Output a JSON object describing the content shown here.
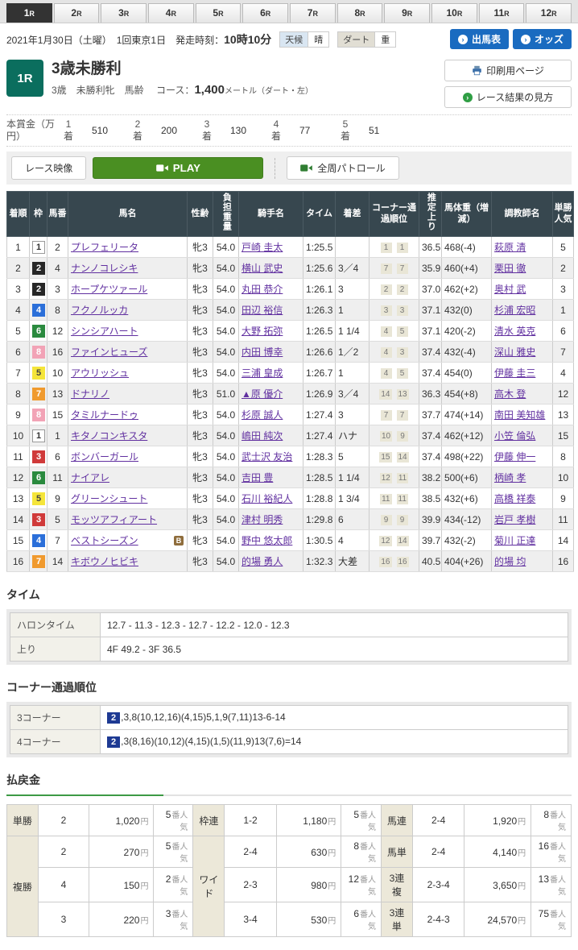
{
  "tabs": {
    "items": [
      "1R",
      "2R",
      "3R",
      "4R",
      "5R",
      "6R",
      "7R",
      "8R",
      "9R",
      "10R",
      "11R",
      "12R"
    ],
    "active_index": 0
  },
  "info_bar": {
    "date": "2021年1月30日（土曜）",
    "meeting": "1回東京1日",
    "start_label": "発走時刻：",
    "start_time": "10時10分",
    "weather_label": "天候",
    "weather_value": "晴",
    "track_label": "ダート",
    "track_value": "重",
    "entry_button": "出馬表",
    "odds_button": "オッズ"
  },
  "race_header": {
    "race_no": "1R",
    "title": "3歳未勝利",
    "conditions": "3歳　未勝利牝　馬齢",
    "course_label": "コース：",
    "course_value": "1,400",
    "course_suffix": "メートル（ダート・左）",
    "print_button": "印刷用ページ",
    "guide_button": "レース結果の見方"
  },
  "prize": {
    "label": "本賞金（万円）",
    "items": [
      {
        "place": "1着",
        "amount": "510"
      },
      {
        "place": "2着",
        "amount": "200"
      },
      {
        "place": "3着",
        "amount": "130"
      },
      {
        "place": "4着",
        "amount": "77"
      },
      {
        "place": "5着",
        "amount": "51"
      }
    ]
  },
  "video_bar": {
    "race_video": "レース映像",
    "play": "PLAY",
    "patrol": "全周パトロール"
  },
  "results": {
    "columns": [
      "着順",
      "枠",
      "馬番",
      "馬名",
      "性齢",
      "負担重量",
      "騎手名",
      "タイム",
      "着差",
      "コーナー通過順位",
      "推定上り",
      "馬体重（増減）",
      "調教師名",
      "単勝人気"
    ],
    "rows": [
      {
        "pos": "1",
        "waku": "1",
        "num": "2",
        "horse": "プレフェリータ",
        "blinker": false,
        "sexage": "牝3",
        "weight": "54.0",
        "jockey": "戸崎 圭太",
        "time": "1:25.5",
        "margin": "",
        "corners": [
          "1",
          "1"
        ],
        "agari": "36.5",
        "body": "468(-4)",
        "trainer": "萩原 清",
        "fav": "5"
      },
      {
        "pos": "2",
        "waku": "2",
        "num": "4",
        "horse": "ナンノコレシキ",
        "blinker": false,
        "sexage": "牝3",
        "weight": "54.0",
        "jockey": "横山 武史",
        "time": "1:25.6",
        "margin": "3／4",
        "corners": [
          "7",
          "7"
        ],
        "agari": "35.9",
        "body": "460(+4)",
        "trainer": "栗田 徹",
        "fav": "2"
      },
      {
        "pos": "3",
        "waku": "2",
        "num": "3",
        "horse": "ホープケツァール",
        "blinker": false,
        "sexage": "牝3",
        "weight": "54.0",
        "jockey": "丸田 恭介",
        "time": "1:26.1",
        "margin": "3",
        "corners": [
          "2",
          "2"
        ],
        "agari": "37.0",
        "body": "462(+2)",
        "trainer": "奥村 武",
        "fav": "3"
      },
      {
        "pos": "4",
        "waku": "4",
        "num": "8",
        "horse": "フクノルッカ",
        "blinker": false,
        "sexage": "牝3",
        "weight": "54.0",
        "jockey": "田辺 裕信",
        "time": "1:26.3",
        "margin": "1",
        "corners": [
          "3",
          "3"
        ],
        "agari": "37.1",
        "body": "432(0)",
        "trainer": "杉浦 宏昭",
        "fav": "1"
      },
      {
        "pos": "5",
        "waku": "6",
        "num": "12",
        "horse": "シンシアハート",
        "blinker": false,
        "sexage": "牝3",
        "weight": "54.0",
        "jockey": "大野 拓弥",
        "time": "1:26.5",
        "margin": "1 1/4",
        "corners": [
          "4",
          "5"
        ],
        "agari": "37.1",
        "body": "420(-2)",
        "trainer": "清水 英克",
        "fav": "6"
      },
      {
        "pos": "6",
        "waku": "8",
        "num": "16",
        "horse": "ファインヒューズ",
        "blinker": false,
        "sexage": "牝3",
        "weight": "54.0",
        "jockey": "内田 博幸",
        "time": "1:26.6",
        "margin": "1／2",
        "corners": [
          "4",
          "3"
        ],
        "agari": "37.4",
        "body": "432(-4)",
        "trainer": "深山 雅史",
        "fav": "7"
      },
      {
        "pos": "7",
        "waku": "5",
        "num": "10",
        "horse": "アウリッシュ",
        "blinker": false,
        "sexage": "牝3",
        "weight": "54.0",
        "jockey": "三浦 皇成",
        "time": "1:26.7",
        "margin": "1",
        "corners": [
          "4",
          "5"
        ],
        "agari": "37.4",
        "body": "454(0)",
        "trainer": "伊藤 圭三",
        "fav": "4"
      },
      {
        "pos": "8",
        "waku": "7",
        "num": "13",
        "horse": "ドナリノ",
        "blinker": false,
        "sexage": "牝3",
        "weight": "51.0",
        "jockey": "▲原 優介",
        "time": "1:26.9",
        "margin": "3／4",
        "corners": [
          "14",
          "13"
        ],
        "agari": "36.3",
        "body": "454(+8)",
        "trainer": "高木 登",
        "fav": "12"
      },
      {
        "pos": "9",
        "waku": "8",
        "num": "15",
        "horse": "タミルナードゥ",
        "blinker": false,
        "sexage": "牝3",
        "weight": "54.0",
        "jockey": "杉原 誠人",
        "time": "1:27.4",
        "margin": "3",
        "corners": [
          "7",
          "7"
        ],
        "agari": "37.7",
        "body": "474(+14)",
        "trainer": "南田 美知雄",
        "fav": "13"
      },
      {
        "pos": "10",
        "waku": "1",
        "num": "1",
        "horse": "キタノコンキスタ",
        "blinker": false,
        "sexage": "牝3",
        "weight": "54.0",
        "jockey": "嶋田 純次",
        "time": "1:27.4",
        "margin": "ハナ",
        "corners": [
          "10",
          "9"
        ],
        "agari": "37.4",
        "body": "462(+12)",
        "trainer": "小笠 倫弘",
        "fav": "15"
      },
      {
        "pos": "11",
        "waku": "3",
        "num": "6",
        "horse": "ボンバーガール",
        "blinker": false,
        "sexage": "牝3",
        "weight": "54.0",
        "jockey": "武士沢 友治",
        "time": "1:28.3",
        "margin": "5",
        "corners": [
          "15",
          "14"
        ],
        "agari": "37.4",
        "body": "498(+22)",
        "trainer": "伊藤 伸一",
        "fav": "8"
      },
      {
        "pos": "12",
        "waku": "6",
        "num": "11",
        "horse": "ナイアレ",
        "blinker": false,
        "sexage": "牝3",
        "weight": "54.0",
        "jockey": "吉田 豊",
        "time": "1:28.5",
        "margin": "1 1/4",
        "corners": [
          "12",
          "11"
        ],
        "agari": "38.2",
        "body": "500(+6)",
        "trainer": "柄崎 孝",
        "fav": "10"
      },
      {
        "pos": "13",
        "waku": "5",
        "num": "9",
        "horse": "グリーンシュート",
        "blinker": false,
        "sexage": "牝3",
        "weight": "54.0",
        "jockey": "石川 裕紀人",
        "time": "1:28.8",
        "margin": "1 3/4",
        "corners": [
          "11",
          "11"
        ],
        "agari": "38.5",
        "body": "432(+6)",
        "trainer": "高橋 祥泰",
        "fav": "9"
      },
      {
        "pos": "14",
        "waku": "3",
        "num": "5",
        "horse": "モッツアフィアート",
        "blinker": false,
        "sexage": "牝3",
        "weight": "54.0",
        "jockey": "津村 明秀",
        "time": "1:29.8",
        "margin": "6",
        "corners": [
          "9",
          "9"
        ],
        "agari": "39.9",
        "body": "434(-12)",
        "trainer": "岩戸 孝樹",
        "fav": "11"
      },
      {
        "pos": "15",
        "waku": "4",
        "num": "7",
        "horse": "ベストシーズン",
        "blinker": true,
        "sexage": "牝3",
        "weight": "54.0",
        "jockey": "野中 悠太郎",
        "time": "1:30.5",
        "margin": "4",
        "corners": [
          "12",
          "14"
        ],
        "agari": "39.7",
        "body": "432(-2)",
        "trainer": "菊川 正達",
        "fav": "14"
      },
      {
        "pos": "16",
        "waku": "7",
        "num": "14",
        "horse": "キボウノヒビキ",
        "blinker": false,
        "sexage": "牝3",
        "weight": "54.0",
        "jockey": "的場 勇人",
        "time": "1:32.3",
        "margin": "大差",
        "corners": [
          "16",
          "16"
        ],
        "agari": "40.5",
        "body": "404(+26)",
        "trainer": "的場 均",
        "fav": "16"
      }
    ],
    "blinker_badge": "B"
  },
  "time_section": {
    "title": "タイム",
    "rows": [
      {
        "label": "ハロンタイム",
        "value": "12.7 - 11.3 - 12.3 - 12.7 - 12.2 - 12.0 - 12.3"
      },
      {
        "label": "上り",
        "value": "4F 49.2 - 3F 36.5"
      }
    ]
  },
  "corner_section": {
    "title": "コーナー通過順位",
    "rows": [
      {
        "label": "3コーナー",
        "leader": "2",
        "order": ",3,8(10,12,16)(4,15)5,1,9(7,11)13-6-14"
      },
      {
        "label": "4コーナー",
        "leader": "2",
        "order": ",3(8,16)(10,12)(4,15)(1,5)(11,9)13(7,6)=14"
      }
    ]
  },
  "payout": {
    "title": "払戻金",
    "bets": [
      {
        "type": "単勝",
        "rows": [
          [
            "2",
            "1,020",
            "5"
          ]
        ]
      },
      {
        "type": "複勝",
        "rows": [
          [
            "2",
            "270",
            "5"
          ],
          [
            "4",
            "150",
            "2"
          ],
          [
            "3",
            "220",
            "3"
          ]
        ]
      },
      {
        "type": "枠連",
        "rows": [
          [
            "1-2",
            "1,180",
            "5"
          ]
        ]
      },
      {
        "type": "ワイド",
        "rows": [
          [
            "2-4",
            "630",
            "8"
          ],
          [
            "2-3",
            "980",
            "12"
          ],
          [
            "3-4",
            "530",
            "6"
          ]
        ]
      },
      {
        "type": "馬連",
        "rows": [
          [
            "2-4",
            "1,920",
            "8"
          ]
        ]
      },
      {
        "type": "馬単",
        "rows": [
          [
            "2-4",
            "4,140",
            "16"
          ]
        ]
      },
      {
        "type": "3連複",
        "rows": [
          [
            "2-3-4",
            "3,650",
            "13"
          ]
        ]
      },
      {
        "type": "3連単",
        "rows": [
          [
            "2-4-3",
            "24,570",
            "75"
          ]
        ]
      }
    ]
  },
  "units": {
    "yen": "円",
    "pop_suffix": "番人気"
  },
  "colors": {
    "accent_blue": "#1a6bc0",
    "brand_teal": "#0b6e5e",
    "play_green": "#4a8f22",
    "table_header": "#37474f",
    "link_purple": "#6130a0",
    "leader_navy": "#1e3a93",
    "payout_label_bg": "#ece8d9",
    "waku": {
      "1": "#ffffff",
      "2": "#272727",
      "3": "#d03a3a",
      "4": "#2b6fd9",
      "5": "#f5e53a",
      "6": "#2a8a3e",
      "7": "#f09a2e",
      "8": "#f2a3b6"
    }
  }
}
